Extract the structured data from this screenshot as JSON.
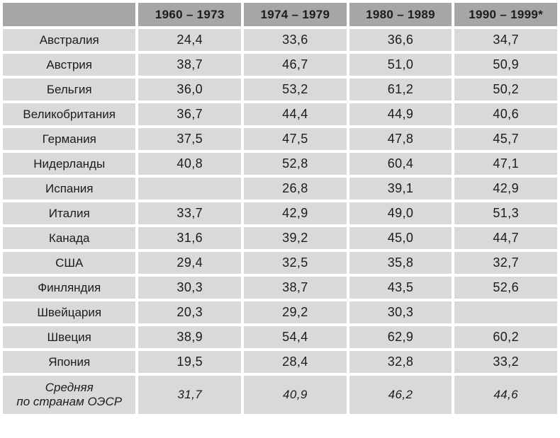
{
  "colors": {
    "header_bg": "#a6a6a6",
    "cell_bg": "#d9d9d9",
    "text": "#1c1c1c",
    "gap": "#ffffff"
  },
  "table": {
    "columns": [
      "",
      "1960 – 1973",
      "1974 – 1979",
      "1980 – 1989",
      "1990 – 1999*"
    ],
    "rows": [
      {
        "label": "Австралия",
        "values": [
          "24,4",
          "33,6",
          "36,6",
          "34,7"
        ]
      },
      {
        "label": "Австрия",
        "values": [
          "38,7",
          "46,7",
          "51,0",
          "50,9"
        ]
      },
      {
        "label": "Бельгия",
        "values": [
          "36,0",
          "53,2",
          "61,2",
          "50,2"
        ]
      },
      {
        "label": "Великобритания",
        "values": [
          "36,7",
          "44,4",
          "44,9",
          "40,6"
        ]
      },
      {
        "label": "Германия",
        "values": [
          "37,5",
          "47,5",
          "47,8",
          "45,7"
        ]
      },
      {
        "label": "Нидерланды",
        "values": [
          "40,8",
          "52,8",
          "60,4",
          "47,1"
        ]
      },
      {
        "label": "Испания",
        "values": [
          "",
          "26,8",
          "39,1",
          "42,9"
        ]
      },
      {
        "label": "Италия",
        "values": [
          "33,7",
          "42,9",
          "49,0",
          "51,3"
        ]
      },
      {
        "label": "Канада",
        "values": [
          "31,6",
          "39,2",
          "45,0",
          "44,7"
        ]
      },
      {
        "label": "США",
        "values": [
          "29,4",
          "32,5",
          "35,8",
          "32,7"
        ]
      },
      {
        "label": "Финляндия",
        "values": [
          "30,3",
          "38,7",
          "43,5",
          "52,6"
        ]
      },
      {
        "label": "Швейцария",
        "values": [
          "20,3",
          "29,2",
          "30,3",
          ""
        ]
      },
      {
        "label": "Швеция",
        "values": [
          "38,9",
          "54,4",
          "62,9",
          "60,2"
        ]
      },
      {
        "label": "Япония",
        "values": [
          "19,5",
          "28,4",
          "32,8",
          "33,2"
        ]
      },
      {
        "label": "Средняя\nпо странам ОЭСР",
        "values": [
          "31,7",
          "40,9",
          "46,2",
          "44,6"
        ],
        "italic": true
      }
    ]
  },
  "chart_data": {
    "type": "table",
    "categories": [
      "1960–1973",
      "1974–1979",
      "1980–1989",
      "1990–1999*"
    ],
    "rows": [
      {
        "name": "Австралия",
        "values": [
          24.4,
          33.6,
          36.6,
          34.7
        ]
      },
      {
        "name": "Австрия",
        "values": [
          38.7,
          46.7,
          51.0,
          50.9
        ]
      },
      {
        "name": "Бельгия",
        "values": [
          36.0,
          53.2,
          61.2,
          50.2
        ]
      },
      {
        "name": "Великобритания",
        "values": [
          36.7,
          44.4,
          44.9,
          40.6
        ]
      },
      {
        "name": "Германия",
        "values": [
          37.5,
          47.5,
          47.8,
          45.7
        ]
      },
      {
        "name": "Нидерланды",
        "values": [
          40.8,
          52.8,
          60.4,
          47.1
        ]
      },
      {
        "name": "Испания",
        "values": [
          null,
          26.8,
          39.1,
          42.9
        ]
      },
      {
        "name": "Италия",
        "values": [
          33.7,
          42.9,
          49.0,
          51.3
        ]
      },
      {
        "name": "Канада",
        "values": [
          31.6,
          39.2,
          45.0,
          44.7
        ]
      },
      {
        "name": "США",
        "values": [
          29.4,
          32.5,
          35.8,
          32.7
        ]
      },
      {
        "name": "Финляндия",
        "values": [
          30.3,
          38.7,
          43.5,
          52.6
        ]
      },
      {
        "name": "Швейцария",
        "values": [
          20.3,
          29.2,
          30.3,
          null
        ]
      },
      {
        "name": "Швеция",
        "values": [
          38.9,
          54.4,
          62.9,
          60.2
        ]
      },
      {
        "name": "Япония",
        "values": [
          19.5,
          28.4,
          32.8,
          33.2
        ]
      },
      {
        "name": "Средняя по странам ОЭСР",
        "values": [
          31.7,
          40.9,
          46.2,
          44.6
        ]
      }
    ],
    "notes": "Values use comma decimal separator in display; last column marked with asterisk footnote; bottom row is OECD average (italic)."
  }
}
